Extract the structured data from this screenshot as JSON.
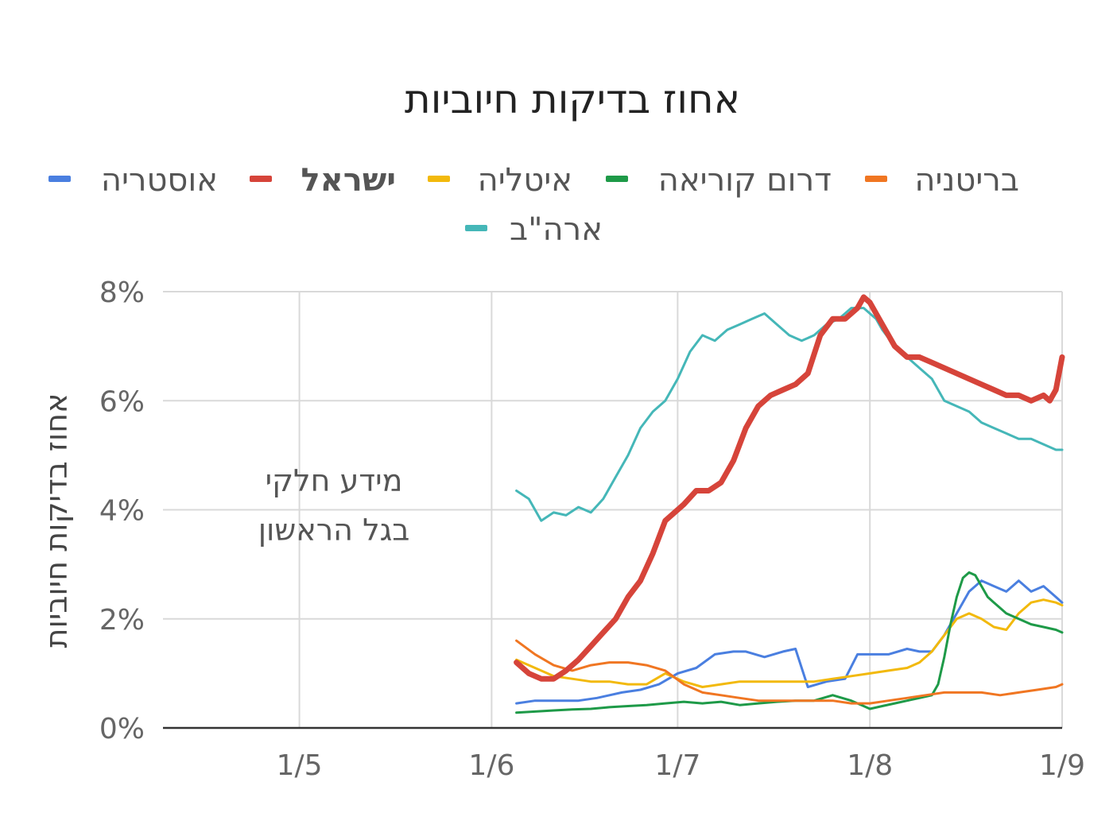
{
  "chart_data": {
    "type": "line",
    "title": "אחוז בדיקות חיוביות",
    "ylabel": "אחוז בדיקות חיוביות",
    "xlabel": "",
    "ylim": [
      0,
      8
    ],
    "y_ticks": [
      "0%",
      "2%",
      "4%",
      "6%",
      "8%"
    ],
    "y_tick_values": [
      0,
      2,
      4,
      6,
      8
    ],
    "x_ticks": [
      "1/5",
      "1/6",
      "1/7",
      "1/8",
      "1/9"
    ],
    "x_tick_values": [
      0,
      31,
      61,
      92,
      123
    ],
    "x_range": [
      -22,
      123
    ],
    "grid": true,
    "legend_position": "top",
    "annotation": [
      "מידע חלקי",
      "בגל הראשון"
    ],
    "series": [
      {
        "name": "אוסטריה",
        "color": "#4a7fe0",
        "bold": false,
        "x": [
          35,
          38,
          41,
          45,
          48,
          52,
          55,
          58,
          61,
          64,
          67,
          70,
          72,
          75,
          78,
          80,
          82,
          85,
          88,
          90,
          92,
          95,
          98,
          100,
          102,
          104,
          106,
          108,
          110,
          112,
          114,
          116,
          118,
          120,
          122,
          123
        ],
        "y": [
          0.45,
          0.5,
          0.5,
          0.5,
          0.55,
          0.65,
          0.7,
          0.8,
          1.0,
          1.1,
          1.35,
          1.4,
          1.4,
          1.3,
          1.4,
          1.45,
          0.75,
          0.85,
          0.9,
          1.35,
          1.35,
          1.35,
          1.45,
          1.4,
          1.4,
          1.7,
          2.1,
          2.5,
          2.7,
          2.6,
          2.5,
          2.7,
          2.5,
          2.6,
          2.4,
          2.3
        ]
      },
      {
        "name": "ישראל",
        "color": "#d6443a",
        "bold": true,
        "x": [
          35,
          37,
          39,
          41,
          43,
          45,
          47,
          49,
          51,
          53,
          55,
          57,
          59,
          61,
          62,
          64,
          66,
          68,
          70,
          72,
          74,
          76,
          78,
          80,
          82,
          84,
          86,
          88,
          90,
          91,
          92,
          93,
          94,
          96,
          98,
          100,
          102,
          104,
          106,
          108,
          110,
          112,
          114,
          116,
          118,
          120,
          121,
          122,
          123
        ],
        "y": [
          1.2,
          1.0,
          0.9,
          0.9,
          1.05,
          1.25,
          1.5,
          1.75,
          2.0,
          2.4,
          2.7,
          3.2,
          3.8,
          4.0,
          4.1,
          4.35,
          4.35,
          4.5,
          4.9,
          5.5,
          5.9,
          6.1,
          6.2,
          6.3,
          6.5,
          7.2,
          7.5,
          7.5,
          7.7,
          7.9,
          7.8,
          7.6,
          7.4,
          7.0,
          6.8,
          6.8,
          6.7,
          6.6,
          6.5,
          6.4,
          6.3,
          6.2,
          6.1,
          6.1,
          6.0,
          6.1,
          6.0,
          6.2,
          6.8
        ]
      },
      {
        "name": "איטליה",
        "color": "#f2b90c",
        "bold": false,
        "x": [
          35,
          38,
          41,
          44,
          47,
          50,
          53,
          56,
          59,
          62,
          65,
          68,
          71,
          74,
          77,
          80,
          83,
          86,
          89,
          92,
          95,
          98,
          100,
          102,
          104,
          106,
          108,
          110,
          112,
          114,
          116,
          118,
          120,
          122,
          123
        ],
        "y": [
          1.25,
          1.1,
          0.95,
          0.9,
          0.85,
          0.85,
          0.8,
          0.8,
          1.0,
          0.85,
          0.75,
          0.8,
          0.85,
          0.85,
          0.85,
          0.85,
          0.85,
          0.9,
          0.95,
          1.0,
          1.05,
          1.1,
          1.2,
          1.4,
          1.7,
          2.0,
          2.1,
          2.0,
          1.85,
          1.8,
          2.1,
          2.3,
          2.35,
          2.3,
          2.25
        ]
      },
      {
        "name": "דרום קוריאה",
        "color": "#1e9a48",
        "bold": false,
        "x": [
          35,
          38,
          41,
          44,
          47,
          50,
          53,
          56,
          59,
          62,
          65,
          68,
          71,
          74,
          77,
          80,
          83,
          86,
          89,
          91,
          92,
          94,
          96,
          98,
          100,
          102,
          103,
          104,
          105,
          106,
          107,
          108,
          109,
          110,
          111,
          112,
          114,
          116,
          118,
          120,
          122,
          123
        ],
        "y": [
          0.28,
          0.3,
          0.32,
          0.34,
          0.35,
          0.38,
          0.4,
          0.42,
          0.45,
          0.48,
          0.45,
          0.48,
          0.42,
          0.45,
          0.48,
          0.5,
          0.5,
          0.6,
          0.5,
          0.4,
          0.35,
          0.4,
          0.45,
          0.5,
          0.55,
          0.6,
          0.8,
          1.3,
          1.9,
          2.4,
          2.75,
          2.85,
          2.8,
          2.6,
          2.4,
          2.3,
          2.1,
          2.0,
          1.9,
          1.85,
          1.8,
          1.75
        ]
      },
      {
        "name": "בריטניה",
        "color": "#f07622",
        "bold": false,
        "x": [
          35,
          38,
          41,
          44,
          47,
          50,
          53,
          56,
          59,
          62,
          65,
          68,
          71,
          74,
          77,
          80,
          83,
          86,
          89,
          92,
          95,
          98,
          101,
          104,
          107,
          110,
          113,
          116,
          119,
          122,
          123
        ],
        "y": [
          1.6,
          1.35,
          1.15,
          1.05,
          1.15,
          1.2,
          1.2,
          1.15,
          1.05,
          0.8,
          0.65,
          0.6,
          0.55,
          0.5,
          0.5,
          0.5,
          0.5,
          0.5,
          0.45,
          0.45,
          0.5,
          0.55,
          0.6,
          0.65,
          0.65,
          0.65,
          0.6,
          0.65,
          0.7,
          0.75,
          0.8
        ]
      },
      {
        "name": "ארה\"ב",
        "color": "#45b7b8",
        "bold": false,
        "x": [
          35,
          37,
          39,
          41,
          43,
          45,
          47,
          49,
          51,
          53,
          55,
          57,
          59,
          61,
          63,
          65,
          67,
          69,
          71,
          73,
          75,
          77,
          79,
          81,
          83,
          85,
          87,
          89,
          91,
          92,
          93,
          94,
          96,
          98,
          100,
          102,
          104,
          106,
          108,
          110,
          112,
          114,
          116,
          118,
          120,
          122,
          123
        ],
        "y": [
          4.35,
          4.2,
          3.8,
          3.95,
          3.9,
          4.05,
          3.95,
          4.2,
          4.6,
          5.0,
          5.5,
          5.8,
          6.0,
          6.4,
          6.9,
          7.2,
          7.1,
          7.3,
          7.4,
          7.5,
          7.6,
          7.4,
          7.2,
          7.1,
          7.2,
          7.4,
          7.5,
          7.7,
          7.7,
          7.6,
          7.5,
          7.3,
          7.0,
          6.8,
          6.6,
          6.4,
          6.0,
          5.9,
          5.8,
          5.6,
          5.5,
          5.4,
          5.3,
          5.3,
          5.2,
          5.1,
          5.1
        ]
      }
    ]
  }
}
